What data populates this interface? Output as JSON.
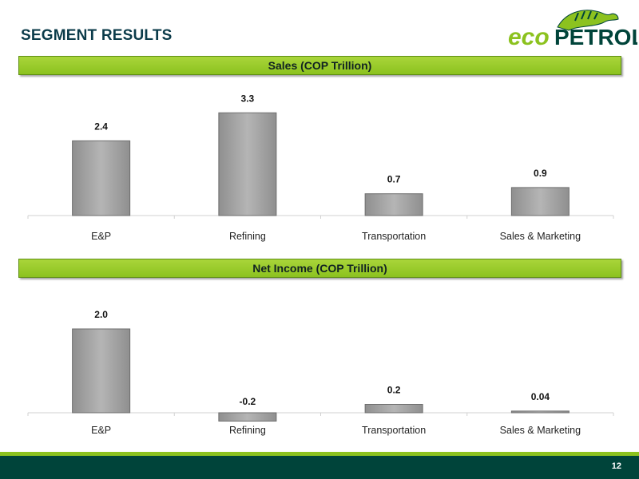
{
  "page": {
    "title": "SEGMENT RESULTS",
    "logo_text": {
      "eco": "eco",
      "petrol": "PETROL"
    },
    "page_number": "12"
  },
  "colors": {
    "title": "#0b3b4a",
    "banner": "#8cc21f",
    "bar": "#b5b5b5",
    "footer": "#00443a",
    "logo_green": "#8cc21f",
    "logo_dark": "#00443a"
  },
  "chart_data": [
    {
      "type": "bar",
      "title": "Sales (COP Trillion)",
      "categories": [
        "E&P",
        "Refining",
        "Transportation",
        "Sales & Marketing"
      ],
      "values": [
        2.4,
        3.3,
        0.7,
        0.9
      ],
      "value_labels": [
        "2.4",
        "3.3",
        "0.7",
        "0.9"
      ],
      "xlabel": "",
      "ylabel": "",
      "ylim": [
        0,
        3.6
      ]
    },
    {
      "type": "bar",
      "title": "Net Income (COP Trillion)",
      "categories": [
        "E&P",
        "Refining",
        "Transportation",
        "Sales & Marketing"
      ],
      "values": [
        2.0,
        -0.2,
        0.2,
        0.04
      ],
      "value_labels": [
        "2.0",
        "-0.2",
        "0.2",
        "0.04"
      ],
      "xlabel": "",
      "ylabel": "",
      "ylim": [
        -0.2,
        2.2
      ]
    }
  ]
}
